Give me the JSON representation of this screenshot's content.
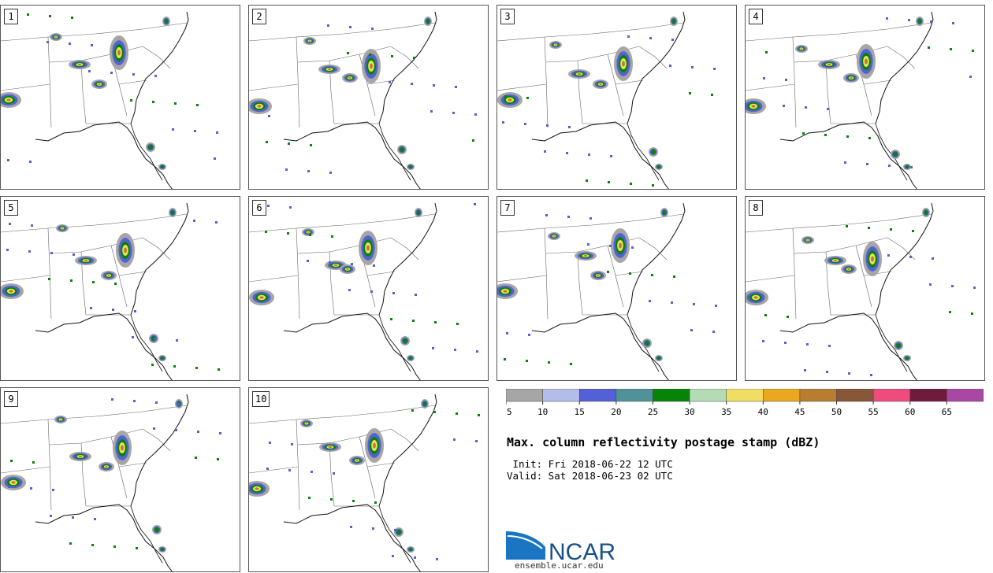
{
  "panels": [
    "1",
    "2",
    "3",
    "4",
    "5",
    "6",
    "7",
    "8",
    "9",
    "10"
  ],
  "colorbar": {
    "ticks": [
      "5",
      "10",
      "15",
      "20",
      "25",
      "30",
      "35",
      "40",
      "45",
      "50",
      "55",
      "60",
      "65"
    ],
    "colors": [
      "#a6a6a6",
      "#b4bde9",
      "#5461d6",
      "#4f9399",
      "#078307",
      "#b5dbb5",
      "#efdd64",
      "#eba81f",
      "#b87d30",
      "#88573a",
      "#ee4c7c",
      "#6d1c3c",
      "#a948a3"
    ]
  },
  "title": "Max. column reflectivity postage stamp (dBZ)",
  "init": "Init: Fri 2018-06-22 12 UTC",
  "valid": "Valid: Sat 2018-06-23 02 UTC",
  "logo": {
    "text": "NCAR",
    "color": "#1a4f8a",
    "accent": "#1a75c2"
  },
  "site": "ensemble.ucar.edu"
}
